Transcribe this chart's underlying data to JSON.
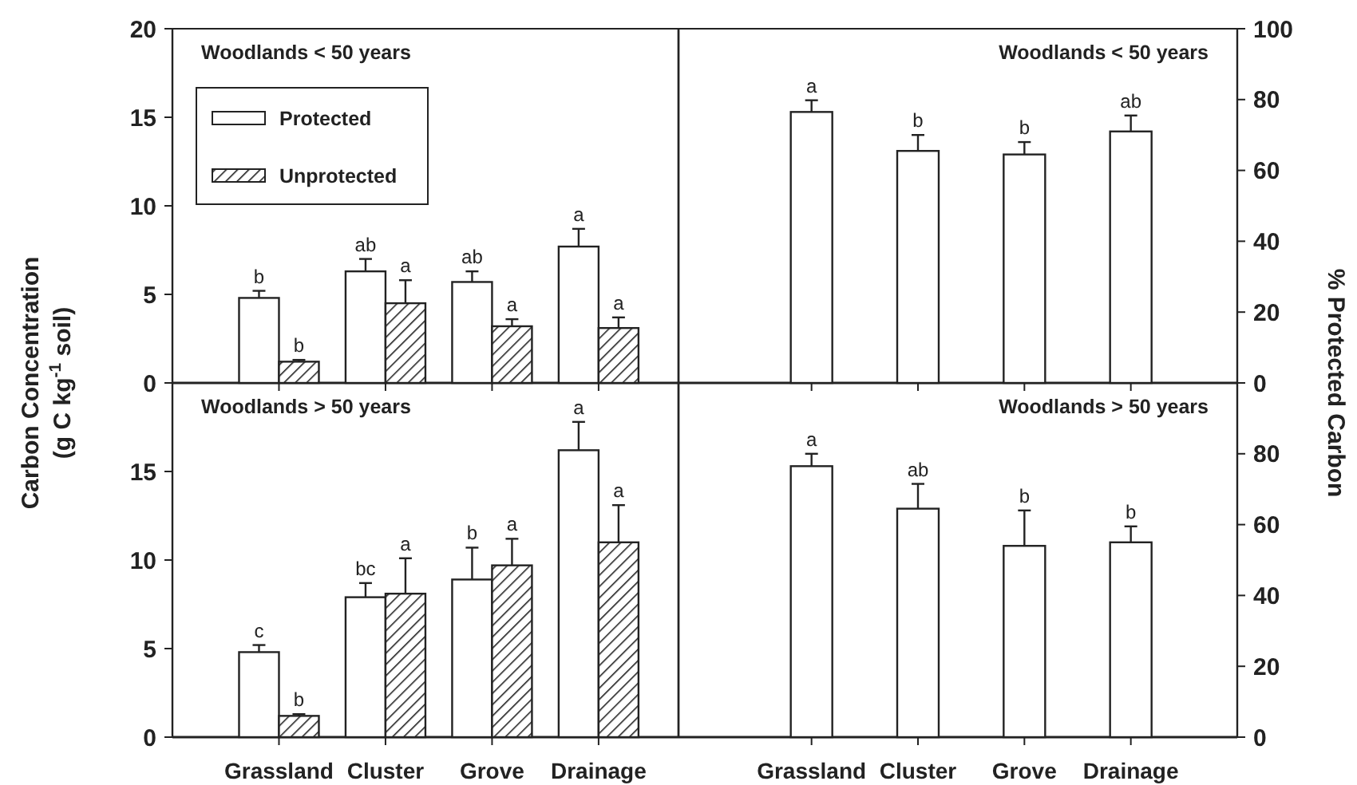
{
  "chart_data": [
    {
      "type": "bar",
      "title": "Woodlands < 50 years",
      "ylabel": "Carbon Concentration\n(g C kg$^{-1}$ soil)",
      "categories": [
        null,
        null,
        null,
        null
      ],
      "ylim": [
        0,
        20
      ],
      "yticks": [
        0,
        5,
        10,
        15,
        20
      ],
      "tick_labels": "y",
      "legend": "top left",
      "series": [
        {
          "name": "Protected",
          "color": "#ffffff",
          "values": [
            4.8,
            6.3,
            5.7,
            7.7
          ],
          "errors": [
            0.4,
            0.7,
            0.6,
            1.0
          ],
          "value_labels": [
            "b",
            "ab",
            "ab",
            "a"
          ]
        },
        {
          "name": "Unprotected",
          "color": "#222222",
          "values": [
            1.2,
            4.5,
            3.2,
            3.1
          ],
          "errors": [
            0.1,
            1.3,
            0.4,
            0.6
          ],
          "value_labels": [
            "b",
            "a",
            "a",
            "a"
          ]
        }
      ]
    },
    {
      "type": "bar",
      "title": "Woodlands < 50 years",
      "ylabel": "% Protected Carbon",
      "categories": [
        null,
        null,
        null,
        null
      ],
      "ylim": [
        0,
        100
      ],
      "yticks": [
        0,
        20,
        40,
        60,
        80,
        100
      ],
      "tick_labels": "y",
      "series": [
        {
          "color": "#ffffff",
          "values": [
            76.5,
            65.5,
            64.5,
            71
          ],
          "errors": [
            3.3,
            4.5,
            3.5,
            4.5
          ],
          "value_labels": [
            "a",
            "b",
            "b",
            "ab"
          ]
        }
      ]
    },
    {
      "type": "bar",
      "title": "Woodlands > 50 years",
      "categories": [
        "Grassland",
        "Cluster",
        "Grove",
        "Drainage"
      ],
      "ylim": [
        0,
        20
      ],
      "yticks": [
        0,
        5,
        10,
        15
      ],
      "series": [
        {
          "color": "#ffffff",
          "values": [
            4.8,
            7.9,
            8.9,
            16.2
          ],
          "errors": [
            0.4,
            0.8,
            1.8,
            1.6
          ],
          "value_labels": [
            "c",
            "bc",
            "b",
            "a"
          ]
        },
        {
          "color": "#222222",
          "values": [
            1.2,
            8.1,
            9.7,
            11.0
          ],
          "errors": [
            0.1,
            2.0,
            1.5,
            2.1
          ],
          "value_labels": [
            "b",
            "a",
            "a",
            "a"
          ]
        }
      ]
    },
    {
      "type": "bar",
      "title": "Woodlands > 50 years",
      "categories": [
        "Grassland",
        "Cluster",
        "Grove",
        "Drainage"
      ],
      "ylim": [
        0,
        100
      ],
      "yticks": [
        0,
        20,
        40,
        60,
        80
      ],
      "series": [
        {
          "color": "#ffffff",
          "values": [
            76.5,
            64.5,
            54,
            55
          ],
          "errors": [
            3.5,
            7,
            10,
            4.5
          ],
          "value_labels": [
            "a",
            "ab",
            "b",
            "b"
          ]
        }
      ]
    }
  ]
}
